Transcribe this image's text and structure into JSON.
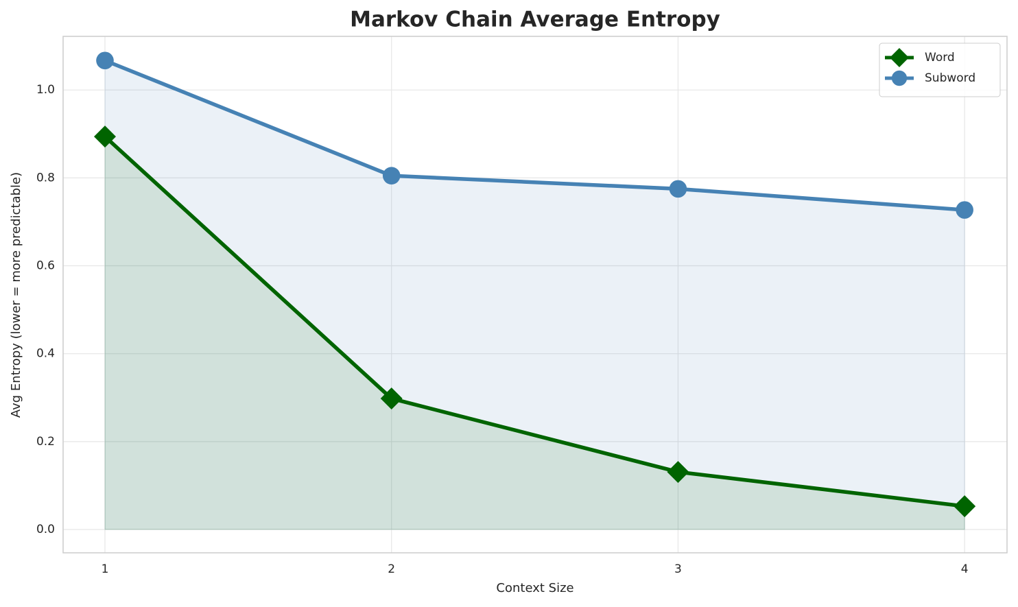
{
  "chart_data": {
    "type": "line",
    "title": "Markov Chain Average Entropy",
    "x_label": "Context Size",
    "y_label": "Avg Entropy (lower = more predictable)",
    "x": [
      1,
      2,
      3,
      4
    ],
    "series": [
      {
        "name": "Word",
        "color": "#006400",
        "marker": "diamond",
        "values": [
          0.894,
          0.298,
          0.131,
          0.053
        ]
      },
      {
        "name": "Subword",
        "color": "#4682b4",
        "marker": "circle",
        "values": [
          1.067,
          0.805,
          0.775,
          0.727
        ]
      }
    ],
    "xlim": [
      0.854,
      4.148
    ],
    "ylim": [
      -0.053,
      1.122
    ],
    "xticks": [
      1,
      2,
      3,
      4
    ],
    "yticks": [
      {
        "value": 0,
        "label": "0.0"
      },
      {
        "value": 0.2,
        "label": "0.2"
      },
      {
        "value": 0.4,
        "label": "0.4"
      },
      {
        "value": 0.6,
        "label": "0.6"
      },
      {
        "value": 0.8,
        "label": "0.8"
      },
      {
        "value": 1.0,
        "label": "1.0"
      }
    ],
    "grid": true,
    "fill_area": true,
    "legend": "upper right"
  }
}
